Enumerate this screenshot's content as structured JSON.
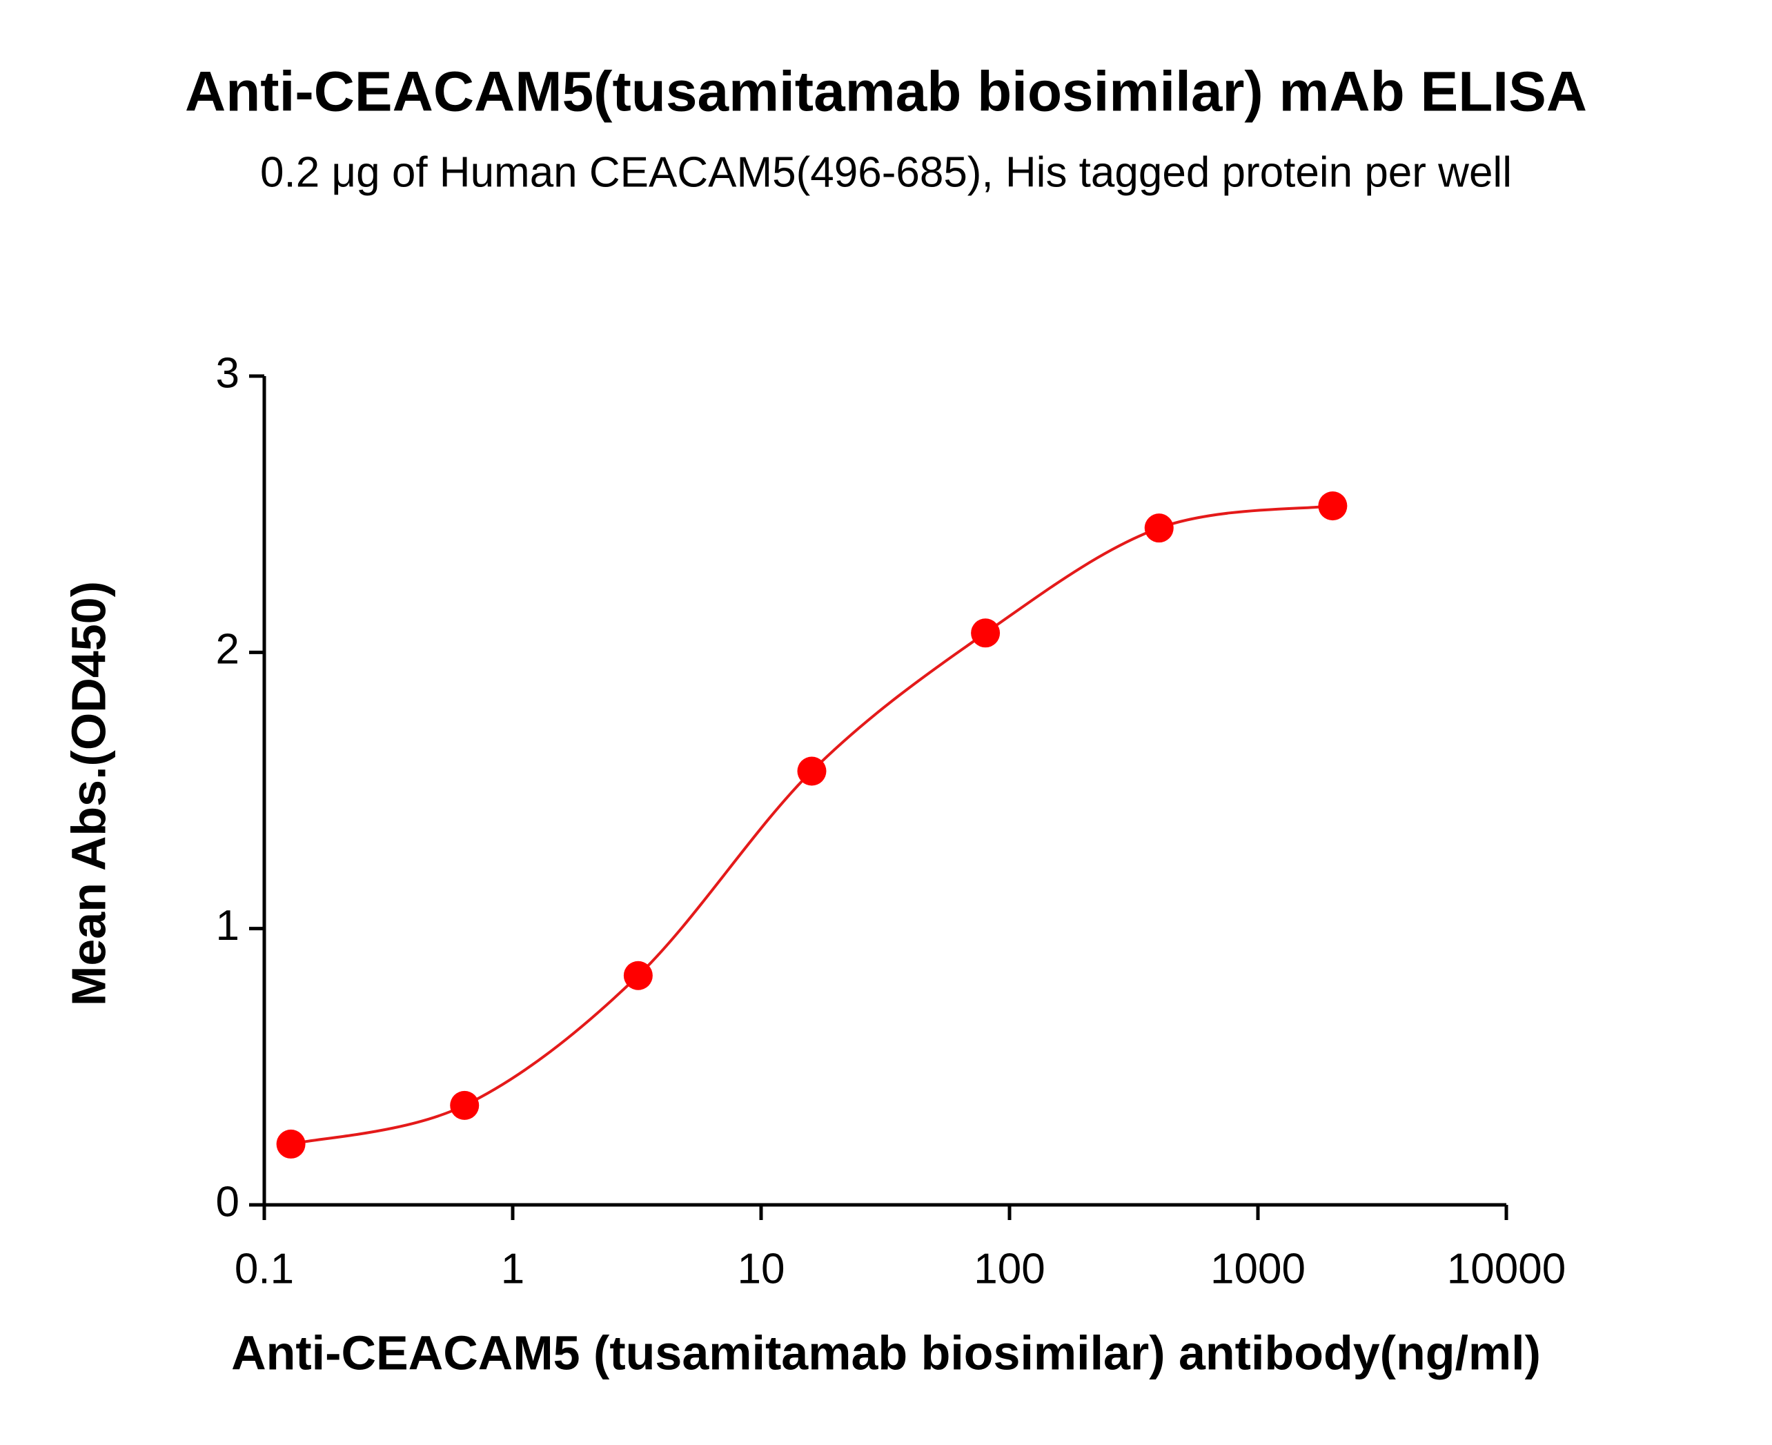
{
  "chart_data": {
    "type": "scatter",
    "title": "Anti-CEACAM5(tusamitamab biosimilar) mAb ELISA",
    "subtitle": "0.2 μg of Human CEACAM5(496-685), His tagged protein per well",
    "x_label": "Anti-CEACAM5 (tusamitamab biosimilar) antibody(ng/ml)",
    "y_label": "Mean Abs.(OD450)",
    "x": [
      0.128,
      0.64,
      3.2,
      16,
      80,
      400,
      2000
    ],
    "series": [
      {
        "color": "#ff0000",
        "values": [
          0.22,
          0.36,
          0.83,
          1.57,
          2.07,
          2.45,
          2.53
        ]
      }
    ],
    "xlim": [
      0.1,
      10000
    ],
    "xticks": [
      0.1,
      1,
      10,
      100,
      1000,
      10000
    ],
    "xscale": "log",
    "ylim": [
      0,
      3
    ],
    "yticks": [
      0,
      1,
      2,
      3
    ],
    "line": true,
    "line_color": "#e41a1a"
  }
}
